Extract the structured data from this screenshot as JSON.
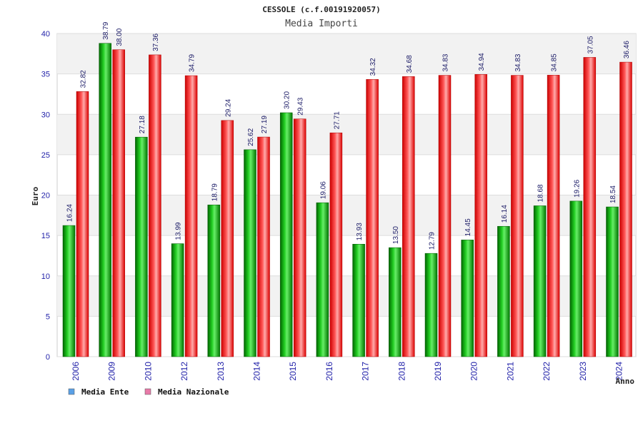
{
  "chart_data": {
    "type": "bar",
    "title": "CESSOLE (c.f.00191920057)",
    "subtitle": "Media Importi",
    "ylabel": "Euro",
    "xlabel": "Anno",
    "ylim": [
      0,
      40
    ],
    "yticks": [
      0,
      5,
      10,
      15,
      20,
      25,
      30,
      35,
      40
    ],
    "grid": true,
    "legend_position": "bottom-left",
    "categories": [
      "2006",
      "2009",
      "2010",
      "2012",
      "2013",
      "2014",
      "2015",
      "2016",
      "2017",
      "2018",
      "2019",
      "2020",
      "2021",
      "2022",
      "2023",
      "2024"
    ],
    "series": [
      {
        "name": "Media Ente",
        "color": "#00aa00",
        "legend_color": "#5aa0e6",
        "values": [
          16.24,
          38.79,
          27.18,
          13.99,
          18.79,
          25.62,
          30.2,
          19.06,
          13.93,
          13.5,
          12.79,
          14.45,
          16.14,
          18.68,
          19.26,
          18.54
        ],
        "labels": [
          "16.24",
          "38.79",
          "27.18",
          "13.99",
          "18.79",
          "25.62",
          "30.20",
          "19.06",
          "13.93",
          "13.50",
          "12.79",
          "14.45",
          "16.14",
          "18.68",
          "19.26",
          "18.54"
        ]
      },
      {
        "name": "Media Nazionale",
        "color": "#ee1111",
        "legend_color": "#e87aa8",
        "values": [
          32.82,
          38.0,
          37.36,
          34.79,
          29.24,
          27.19,
          29.43,
          27.71,
          34.32,
          34.68,
          34.83,
          34.94,
          34.83,
          34.85,
          37.05,
          36.46
        ],
        "labels": [
          "32.82",
          "38.00",
          "37.36",
          "34.79",
          "29.24",
          "27.19",
          "29.43",
          "27.71",
          "34.32",
          "34.68",
          "34.83",
          "34.94",
          "34.83",
          "34.85",
          "37.05",
          "36.46"
        ]
      }
    ]
  }
}
